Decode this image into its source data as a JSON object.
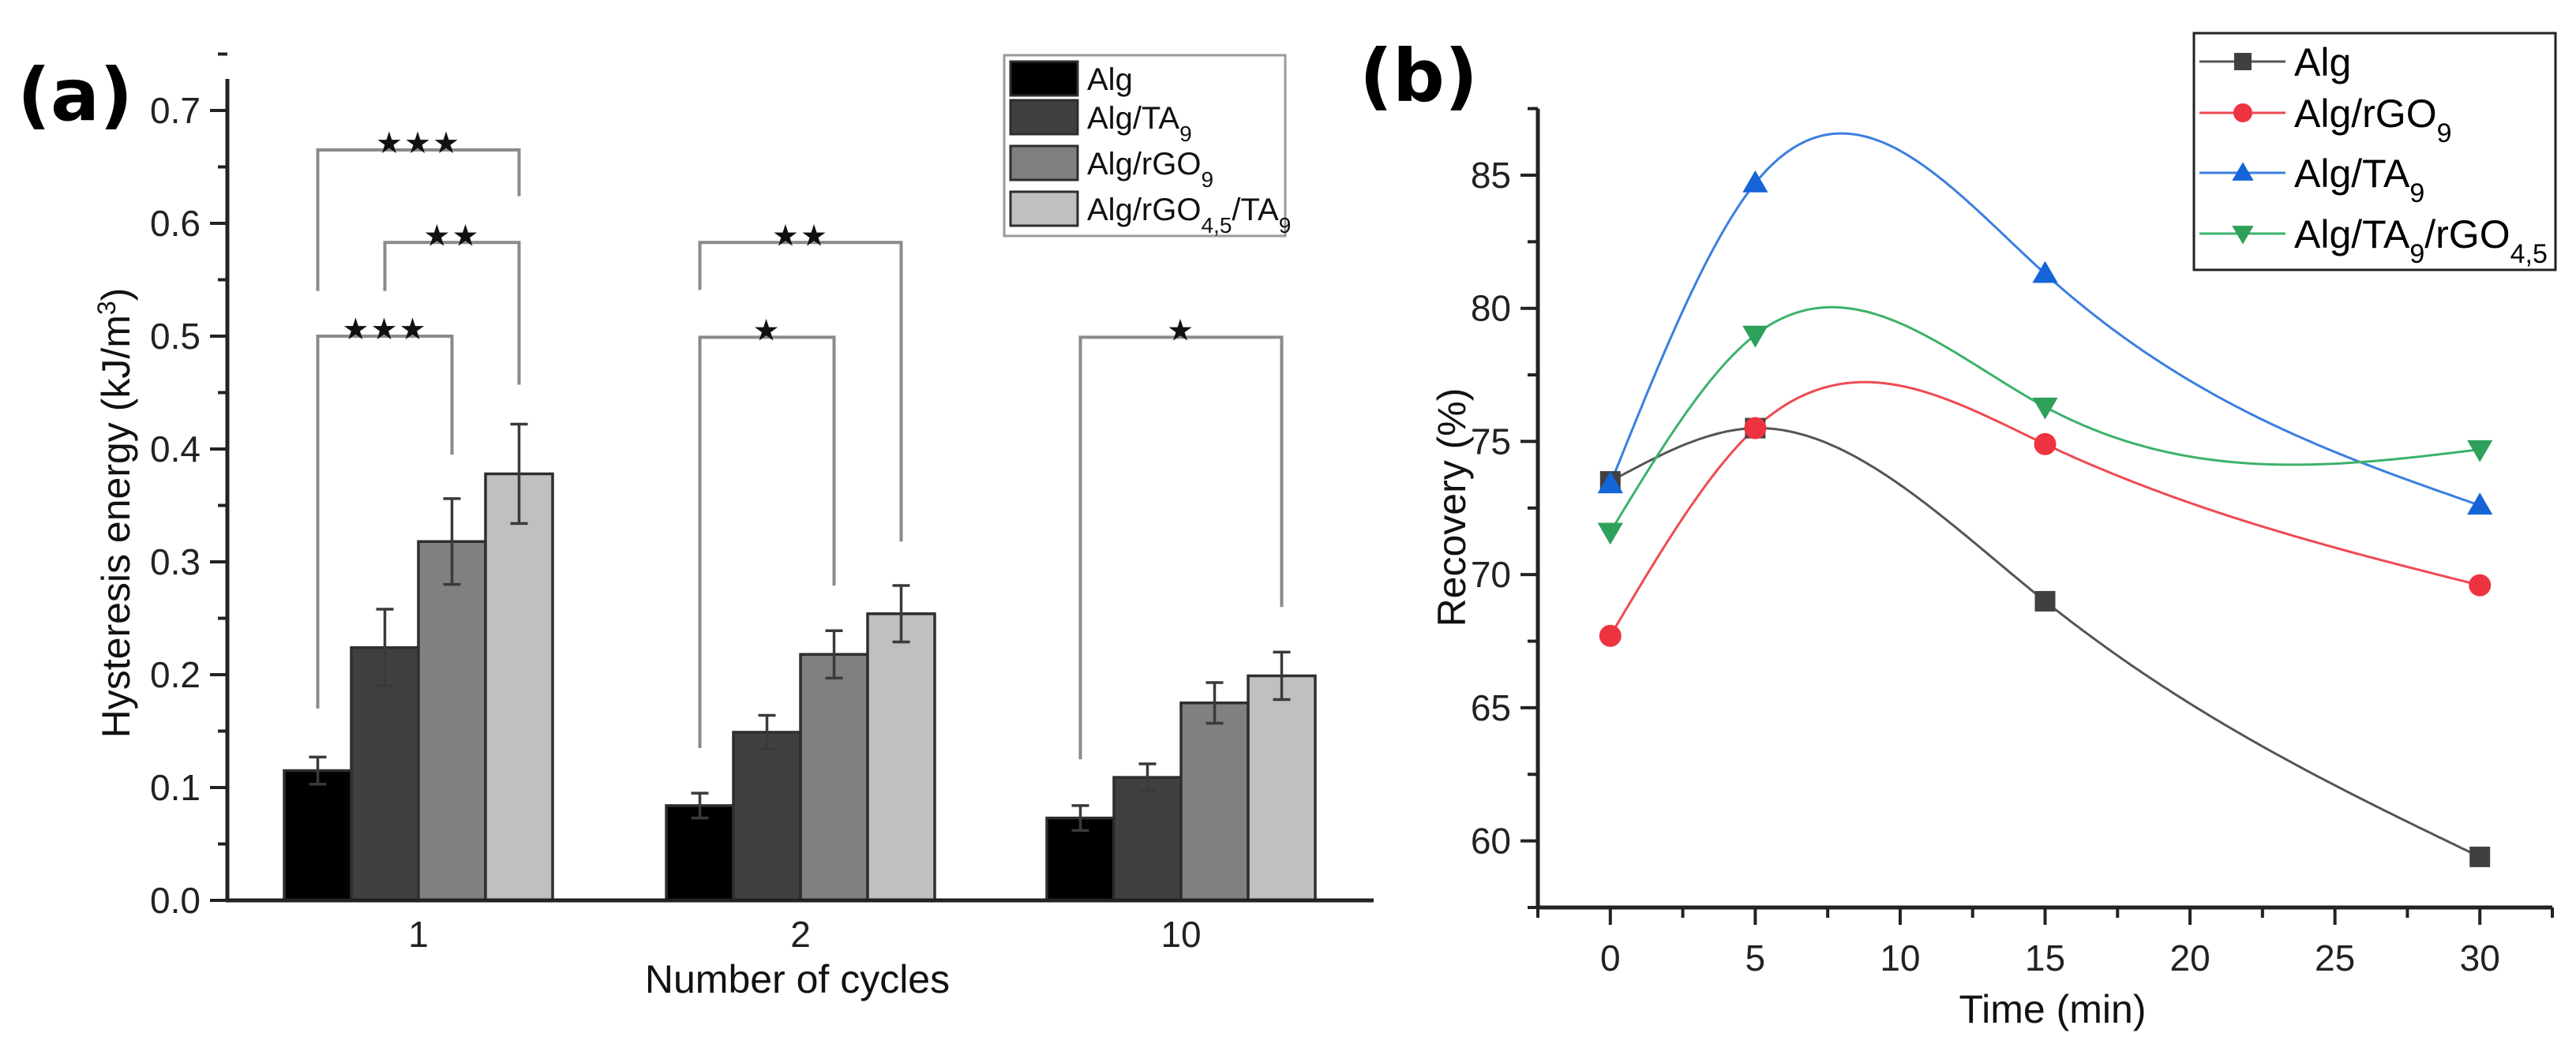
{
  "chart_data": [
    {
      "panel_label": "(a)",
      "type": "bar",
      "xlabel": "Number of cycles",
      "ylabel": "Hysteresis energy (kJ/m³)",
      "ylabel_parts": {
        "main": "Hysteresis energy (kJ/m",
        "sup": "3",
        "end": ")"
      },
      "ylim": [
        0,
        0.75
      ],
      "yticks": [
        0.0,
        0.1,
        0.2,
        0.3,
        0.4,
        0.5,
        0.6,
        0.7
      ],
      "ytick_labels": [
        "0.0",
        "0.1",
        "0.2",
        "0.3",
        "0.4",
        "0.5",
        "0.6",
        "0.7"
      ],
      "grid": false,
      "legend_position": "top-right",
      "categories": [
        "1",
        "2",
        "10"
      ],
      "series": [
        {
          "name": "Alg",
          "label_parts": [
            [
              "Alg",
              ""
            ]
          ],
          "color": "#000000",
          "values": [
            0.115,
            0.084,
            0.073
          ],
          "errors": [
            0.012,
            0.011,
            0.011
          ]
        },
        {
          "name": "Alg/TA9",
          "label_parts": [
            [
              "Alg/TA",
              ""
            ],
            [
              "9",
              "sub"
            ]
          ],
          "color": "#404040",
          "values": [
            0.224,
            0.149,
            0.109
          ],
          "errors": [
            0.034,
            0.015,
            0.012
          ]
        },
        {
          "name": "Alg/rGO9",
          "label_parts": [
            [
              "Alg/rGO",
              ""
            ],
            [
              "9",
              "sub"
            ]
          ],
          "color": "#808080",
          "values": [
            0.318,
            0.218,
            0.175
          ],
          "errors": [
            0.038,
            0.021,
            0.018
          ]
        },
        {
          "name": "Alg/rGO4,5/TA9",
          "label_parts": [
            [
              "Alg/rGO",
              ""
            ],
            [
              "4,5",
              "sub"
            ],
            [
              "/TA",
              ""
            ],
            [
              "9",
              "sub"
            ]
          ],
          "color": "#c0c0c0",
          "values": [
            0.378,
            0.254,
            0.199
          ],
          "errors": [
            0.044,
            0.025,
            0.021
          ]
        }
      ],
      "significance": [
        {
          "category": 0,
          "from": 0,
          "to": 3,
          "level": 0.665,
          "left_end": 0.54,
          "right_end": 0.624,
          "label": "***"
        },
        {
          "category": 0,
          "from": 1,
          "to": 3,
          "level": 0.583,
          "left_end": 0.54,
          "right_end": 0.457,
          "label": "**"
        },
        {
          "category": 0,
          "from": 0,
          "to": 2,
          "level": 0.5,
          "left_end": 0.17,
          "right_end": 0.395,
          "label": "***"
        },
        {
          "category": 1,
          "from": 0,
          "to": 3,
          "level": 0.583,
          "left_end": 0.541,
          "right_end": 0.318,
          "label": "**"
        },
        {
          "category": 1,
          "from": 0,
          "to": 2,
          "level": 0.499,
          "left_end": 0.135,
          "right_end": 0.279,
          "label": "*"
        },
        {
          "category": 2,
          "from": 0,
          "to": 3,
          "level": 0.499,
          "left_end": 0.125,
          "right_end": 0.26,
          "label": "*"
        }
      ]
    },
    {
      "panel_label": "(b)",
      "type": "line",
      "xlabel": "Time (min)",
      "ylabel": "Recovery (%)",
      "xlim": [
        -2.5,
        32.5
      ],
      "ylim": [
        57.5,
        87.5
      ],
      "xticks": [
        0,
        5,
        10,
        15,
        20,
        25,
        30
      ],
      "xtick_labels": [
        "0",
        "5",
        "10",
        "15",
        "20",
        "25",
        "30"
      ],
      "yticks": [
        60,
        65,
        70,
        75,
        80,
        85
      ],
      "ytick_labels": [
        "60",
        "65",
        "70",
        "75",
        "80",
        "85"
      ],
      "grid": false,
      "legend_position": "top-right",
      "x": [
        0,
        5,
        15,
        30
      ],
      "series": [
        {
          "name": "Alg",
          "label_parts": [
            [
              "Alg",
              ""
            ]
          ],
          "color": "#404040",
          "line_color": "#555555",
          "marker": "square",
          "values": [
            73.5,
            75.5,
            69.0,
            59.4
          ]
        },
        {
          "name": "Alg/rGO9",
          "label_parts": [
            [
              "Alg/rGO",
              ""
            ],
            [
              "9",
              "sub"
            ]
          ],
          "color": "#ee3340",
          "line_color": "#ee4a52",
          "marker": "circle",
          "values": [
            67.7,
            75.5,
            74.9,
            69.6
          ]
        },
        {
          "name": "Alg/TA9",
          "label_parts": [
            [
              "Alg/TA",
              ""
            ],
            [
              "9",
              "sub"
            ]
          ],
          "color": "#1565d8",
          "line_color": "#3a7fe0",
          "marker": "triangle-up",
          "values": [
            73.4,
            84.7,
            81.3,
            72.6
          ]
        },
        {
          "name": "Alg/TA9/rGO4,5",
          "label_parts": [
            [
              "Alg/TA",
              ""
            ],
            [
              "9",
              "sub"
            ],
            [
              "/rGO",
              ""
            ],
            [
              "4,5",
              "sub"
            ]
          ],
          "color": "#2ea05a",
          "line_color": "#3cb26a",
          "marker": "triangle-down",
          "values": [
            71.6,
            79.0,
            76.3,
            74.7
          ]
        }
      ]
    }
  ]
}
